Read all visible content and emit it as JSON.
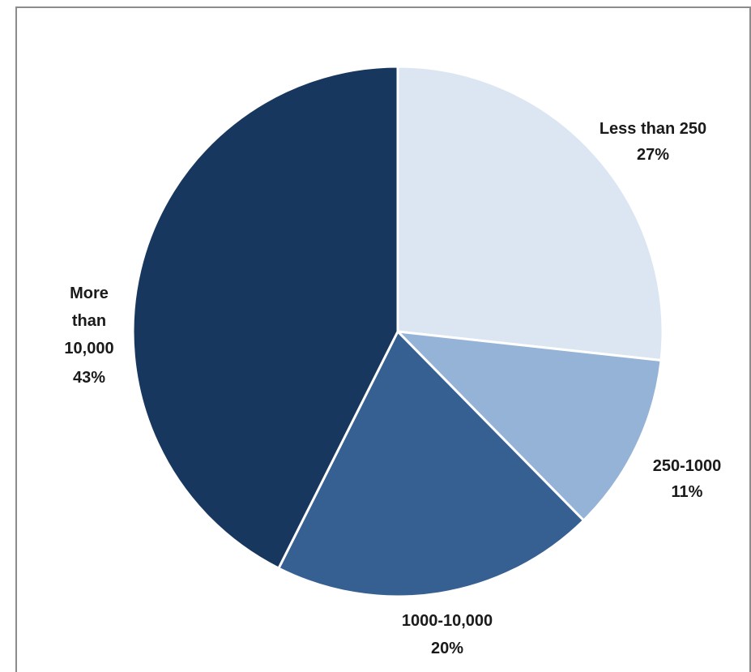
{
  "chart_data": {
    "type": "pie",
    "title": "",
    "slices": [
      {
        "label": "Less than 250",
        "pct_text": "27%",
        "value": 27,
        "color": "#dce6f2"
      },
      {
        "label": "250-1000",
        "pct_text": "11%",
        "value": 11,
        "color": "#95b3d7"
      },
      {
        "label": "1000-10,000",
        "pct_text": "20%",
        "value": 20,
        "color": "#366092"
      },
      {
        "label": "More than 10,000",
        "label_lines": [
          "More",
          "than",
          "10,000"
        ],
        "pct_text": "43%",
        "value": 43,
        "color": "#17375e"
      }
    ],
    "start_angle_deg": 0,
    "direction": "clockwise",
    "legend": "none",
    "data_labels": "outside-near-slice"
  }
}
